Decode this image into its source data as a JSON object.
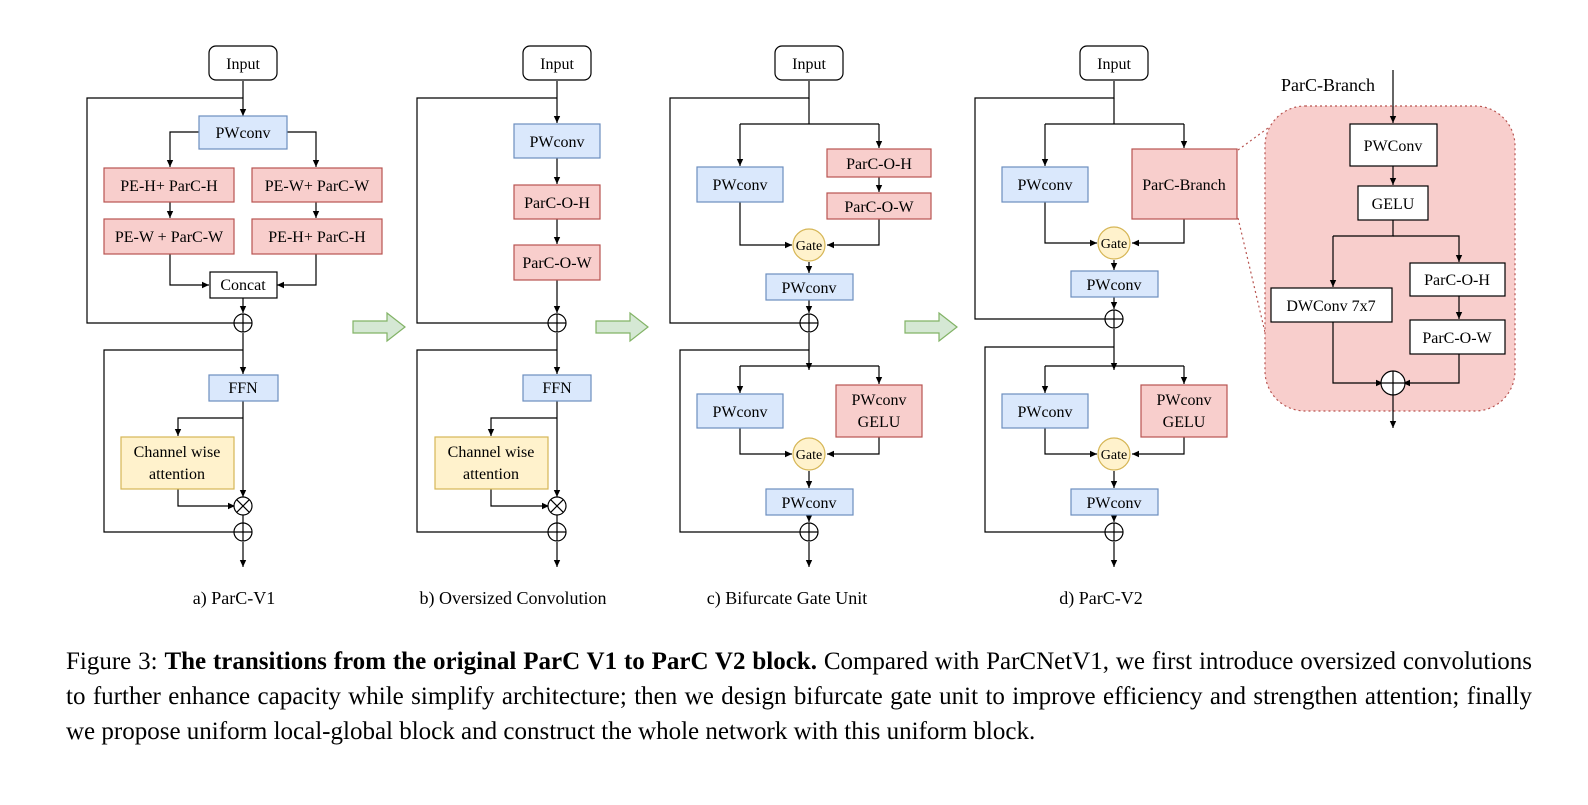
{
  "diagram": {
    "boxes": {
      "input": "Input",
      "pwconv_lower": "PWconv",
      "pwconv_upper": "PWConv",
      "pe_h_parc_h": "PE-H+ ParC-H",
      "pe_w_parc_w": "PE-W+ ParC-W",
      "pe_w_parc_w_2": "PE-W + ParC-W",
      "pe_h_parc_h_2": "PE-H+ ParC-H",
      "concat": "Concat",
      "ffn": "FFN",
      "channel_attention_1": "Channel wise",
      "channel_attention_2": "attention",
      "parc_o_h": "ParC-O-H",
      "parc_o_w": "ParC-O-W",
      "gate": "Gate",
      "pwconv_gelu_1": "PWconv",
      "pwconv_gelu_2": "GELU",
      "parc_branch": "ParC-Branch",
      "gelu": "GELU",
      "dwconv": "DWConv 7x7"
    },
    "subfigures": {
      "a": "a) ParC-V1",
      "b": "b) Oversized Convolution",
      "c": "c) Bifurcate Gate Unit",
      "d": "d) ParC-V2"
    },
    "colors": {
      "blue_fill": "#dae8fc",
      "blue_stroke": "#6c8ebf",
      "red_fill": "#f8cecc",
      "red_stroke": "#b85450",
      "yellow_fill": "#fff2cc",
      "yellow_stroke": "#d6b656",
      "arrow_fill": "#d5e8d4",
      "arrow_stroke": "#82b366"
    }
  },
  "caption": {
    "prefix": "Figure 3:",
    "bold": "The transitions from the original ParC V1 to ParC V2 block.",
    "text": "Compared with ParCNetV1, we first introduce oversized convolutions to further enhance capacity while simplify architecture; then we design bifurcate gate unit to improve efficiency and strengthen attention; finally we propose uniform local-global block and construct the whole network with this uniform block."
  }
}
